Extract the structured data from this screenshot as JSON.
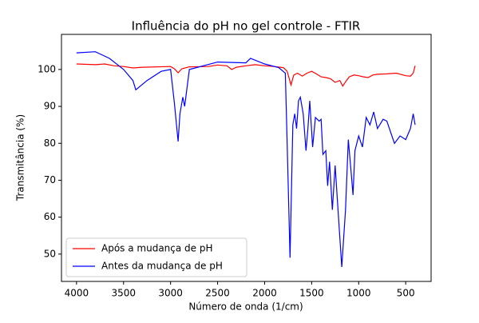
{
  "chart_data": {
    "type": "line",
    "title": "Influência do pH no gel controle - FTIR",
    "x_label": "Número de onda (1/cm)",
    "y_label": "Transmitância (%)",
    "xlim": [
      4160,
      230
    ],
    "ylim": [
      42.6,
      109.5
    ],
    "xticks": [
      4000,
      3500,
      3000,
      2500,
      2000,
      1500,
      1000,
      500
    ],
    "yticks": [
      50,
      60,
      70,
      80,
      90,
      100
    ],
    "legend": "lower left",
    "series": [
      {
        "name": "Após a mudança de pH",
        "color": "#ff0000",
        "x": [
          4000,
          3800,
          3700,
          3600,
          3500,
          3400,
          3300,
          3000,
          2960,
          2920,
          2880,
          2800,
          2600,
          2500,
          2400,
          2350,
          2300,
          2200,
          2100,
          2000,
          1900,
          1800,
          1760,
          1720,
          1690,
          1650,
          1600,
          1550,
          1500,
          1450,
          1400,
          1350,
          1300,
          1250,
          1200,
          1170,
          1130,
          1100,
          1050,
          1000,
          950,
          900,
          850,
          800,
          700,
          600,
          500,
          450,
          420,
          400
        ],
        "values": [
          101.5,
          101.3,
          101.5,
          101,
          100.8,
          100.4,
          100.6,
          100.8,
          100.2,
          99.1,
          100.2,
          100.7,
          100.8,
          101.2,
          101,
          100,
          100.6,
          101,
          101.3,
          101,
          100.8,
          100.5,
          99.5,
          95.8,
          98.5,
          99,
          98.2,
          99,
          99.5,
          98.8,
          98,
          97.8,
          97.5,
          96.5,
          97,
          95.5,
          97,
          98,
          98.5,
          98.3,
          98,
          97.8,
          98.5,
          98.7,
          98.8,
          99,
          98.3,
          98.2,
          99,
          101
        ]
      },
      {
        "name": "Antes da mudança de pH",
        "color": "#0000ff",
        "x": [
          4000,
          3800,
          3650,
          3500,
          3400,
          3370,
          3250,
          3100,
          3000,
          2960,
          2920,
          2900,
          2870,
          2850,
          2800,
          2500,
          2200,
          2150,
          2000,
          1850,
          1780,
          1760,
          1730,
          1700,
          1680,
          1660,
          1640,
          1620,
          1590,
          1560,
          1540,
          1520,
          1490,
          1460,
          1420,
          1400,
          1380,
          1350,
          1330,
          1310,
          1280,
          1250,
          1220,
          1180,
          1140,
          1110,
          1080,
          1060,
          1040,
          1000,
          960,
          920,
          880,
          840,
          800,
          740,
          700,
          620,
          560,
          500,
          450,
          420,
          400
        ],
        "values": [
          104.5,
          104.8,
          103,
          100,
          97,
          94.5,
          97,
          99.5,
          100,
          91,
          80.5,
          88,
          92.5,
          90,
          100,
          102,
          101.8,
          103,
          101.5,
          100.5,
          99,
          80,
          49,
          85,
          88,
          84,
          91.5,
          92.5,
          88,
          78,
          84,
          91.5,
          79,
          87,
          86,
          86.5,
          77,
          78,
          68.5,
          75,
          62,
          74,
          62,
          46.5,
          62,
          81,
          72,
          66,
          78,
          82,
          79,
          87,
          85,
          88.5,
          84,
          86.5,
          86,
          80,
          82,
          81,
          84,
          88,
          85
        ]
      }
    ]
  }
}
